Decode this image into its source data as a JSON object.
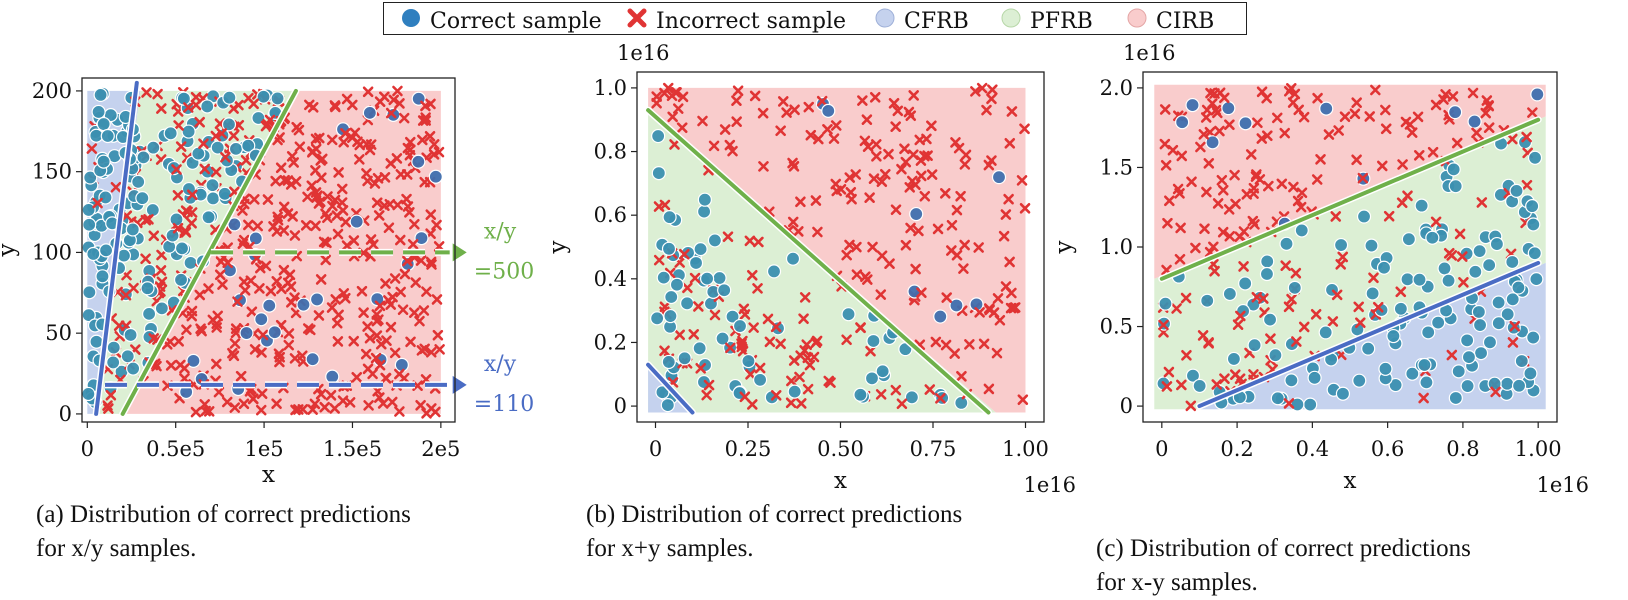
{
  "legend": {
    "correct_sample": "Correct sample",
    "incorrect_sample": "Incorrect sample",
    "cfrb": "CFRB",
    "pfrb": "PFRB",
    "cirb": "CIRB"
  },
  "colors": {
    "correct": "#3b8fb0",
    "correct_dark": "#3f6fae",
    "incorrect": "#e03434",
    "cfrb": "#c5d2ee",
    "pfrb": "#dcefd4",
    "cirb": "#f9cccc",
    "blue_line": "#4a6cc4",
    "green_line": "#6fb04a"
  },
  "captions": {
    "a_line1": "(a) Distribution of correct predictions",
    "a_line2": "for x/y samples.",
    "b_line1": "(b) Distribution of correct predictions",
    "b_line2": "for x+y samples.",
    "c_line1": "(c) Distribution of correct predictions",
    "c_line2": "for x-y samples."
  },
  "chart_data": [
    {
      "type": "scatter",
      "id": "a",
      "title": "",
      "xlabel": "x",
      "ylabel": "y",
      "xlim": [
        0,
        200000
      ],
      "ylim": [
        0,
        200
      ],
      "xticks": [
        0,
        50000,
        100000,
        150000,
        200000
      ],
      "xtick_labels": [
        "0",
        "0.5e5",
        "1e5",
        "1.5e5",
        "2e5"
      ],
      "yticks": [
        0,
        50,
        100,
        150,
        200
      ],
      "ytick_labels": [
        "0",
        "50",
        "100",
        "150",
        "200"
      ],
      "annotations": [
        {
          "text1": "x/y",
          "text2": "=500",
          "y": 100,
          "color": "green"
        },
        {
          "text1": "x/y",
          "text2": "=110",
          "y": 18,
          "color": "blue"
        }
      ],
      "regions": [
        {
          "name": "CFRB",
          "polygon": [
            [
              0,
              0
            ],
            [
              6000,
              0
            ],
            [
              30000,
              200
            ],
            [
              0,
              200
            ]
          ]
        },
        {
          "name": "PFRB",
          "polygon": [
            [
              6000,
              0
            ],
            [
              20000,
              0
            ],
            [
              117000,
              200
            ],
            [
              30000,
              200
            ]
          ]
        },
        {
          "name": "CIRB",
          "polygon": [
            [
              20000,
              0
            ],
            [
              200000,
              0
            ],
            [
              200000,
              200
            ],
            [
              117000,
              200
            ]
          ]
        }
      ],
      "boundary_lines": [
        {
          "name": "blue",
          "points": [
            [
              5000,
              0
            ],
            [
              28000,
              205
            ]
          ]
        },
        {
          "name": "green",
          "points": [
            [
              20000,
              0
            ],
            [
              118000,
              200
            ]
          ]
        }
      ],
      "dashed_lines": [
        {
          "name": "x/y=500",
          "y": 100,
          "x_range": [
            70000,
            205000
          ]
        },
        {
          "name": "x/y=110",
          "y": 18,
          "x_range": [
            10000,
            205000
          ]
        }
      ]
    },
    {
      "type": "scatter",
      "id": "b",
      "title": "",
      "xlabel": "x",
      "ylabel": "y",
      "x_offset_label": "1e16",
      "y_offset_label": "1e16",
      "xlim": [
        0,
        1.0
      ],
      "ylim": [
        0,
        1.0
      ],
      "xticks": [
        0,
        0.25,
        0.5,
        0.75,
        1.0
      ],
      "xtick_labels": [
        "0",
        "0.25",
        "0.50",
        "0.75",
        "1.00"
      ],
      "yticks": [
        0,
        0.2,
        0.4,
        0.6,
        0.8,
        1.0
      ],
      "ytick_labels": [
        "0",
        "0.2",
        "0.4",
        "0.6",
        "0.8",
        "1.0"
      ],
      "regions": [
        {
          "name": "PFRB",
          "polygon": [
            [
              -0.02,
              0.92
            ],
            [
              -0.02,
              -0.02
            ],
            [
              0.92,
              -0.02
            ]
          ]
        },
        {
          "name": "CIRB",
          "polygon": [
            [
              -0.02,
              0.92
            ],
            [
              -0.02,
              1.0
            ],
            [
              1.0,
              1.0
            ],
            [
              1.0,
              -0.02
            ],
            [
              0.92,
              -0.02
            ]
          ]
        },
        {
          "name": "CFRB",
          "polygon": [
            [
              -0.02,
              0.12
            ],
            [
              -0.02,
              -0.02
            ],
            [
              0.1,
              -0.02
            ]
          ]
        }
      ],
      "boundary_lines": [
        {
          "name": "green",
          "points": [
            [
              -0.02,
              0.93
            ],
            [
              0.9,
              -0.02
            ]
          ]
        },
        {
          "name": "blue",
          "points": [
            [
              -0.02,
              0.13
            ],
            [
              0.1,
              -0.02
            ]
          ]
        }
      ]
    },
    {
      "type": "scatter",
      "id": "c",
      "title": "",
      "xlabel": "x",
      "ylabel": "y",
      "x_offset_label": "1e16",
      "y_offset_label": "1e16",
      "xlim": [
        0,
        1.0
      ],
      "ylim": [
        0,
        2.0
      ],
      "xticks": [
        0,
        0.2,
        0.4,
        0.6,
        0.8,
        1.0
      ],
      "xtick_labels": [
        "0",
        "0.2",
        "0.4",
        "0.6",
        "0.8",
        "1.00"
      ],
      "yticks": [
        0,
        0.5,
        1.0,
        1.5,
        2.0
      ],
      "ytick_labels": [
        "0",
        "0.5",
        "1.0",
        "1.5",
        "2.0"
      ],
      "regions": [
        {
          "name": "CIRB",
          "polygon": [
            [
              -0.02,
              0.8
            ],
            [
              1.02,
              1.82
            ],
            [
              1.02,
              2.02
            ],
            [
              -0.02,
              2.02
            ]
          ]
        },
        {
          "name": "PFRB",
          "polygon": [
            [
              -0.02,
              0.8
            ],
            [
              1.02,
              1.82
            ],
            [
              1.02,
              0.9
            ],
            [
              0.1,
              -0.02
            ],
            [
              -0.02,
              -0.02
            ]
          ]
        },
        {
          "name": "CFRB",
          "polygon": [
            [
              0.1,
              -0.02
            ],
            [
              1.02,
              0.9
            ],
            [
              1.02,
              -0.02
            ]
          ]
        }
      ],
      "boundary_lines": [
        {
          "name": "green",
          "points": [
            [
              0,
              0.8
            ],
            [
              1.0,
              1.8
            ]
          ]
        },
        {
          "name": "blue",
          "points": [
            [
              0.1,
              0
            ],
            [
              1.0,
              0.9
            ]
          ]
        }
      ]
    }
  ]
}
